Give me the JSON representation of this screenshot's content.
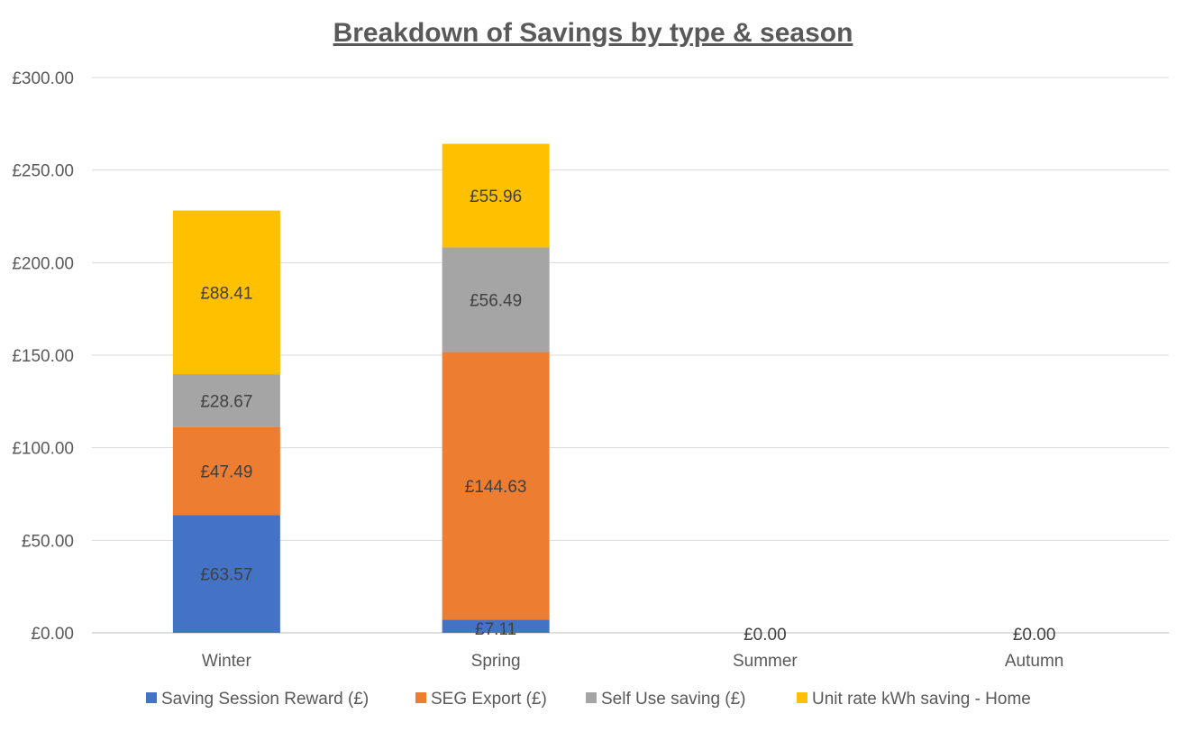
{
  "chart_data": {
    "type": "bar",
    "stacked": true,
    "title": "Breakdown of Savings by type & season",
    "xlabel": "",
    "ylabel": "",
    "categories": [
      "Winter",
      "Spring",
      "Summer",
      "Autumn"
    ],
    "ylim": [
      0,
      300
    ],
    "yticks": [
      0,
      50,
      100,
      150,
      200,
      250,
      300
    ],
    "yticklabels": [
      "£0.00",
      "£50.00",
      "£100.00",
      "£150.00",
      "£200.00",
      "£250.00",
      "£300.00"
    ],
    "grid": true,
    "legend": "bottom",
    "series": [
      {
        "name": "Saving Session Reward (£)",
        "color": "#4472C4",
        "values": [
          63.57,
          7.11,
          0,
          0
        ],
        "labels": [
          "£63.57",
          "£7.11",
          "£0.00",
          "£0.00"
        ]
      },
      {
        "name": "SEG Export (£)",
        "color": "#ED7D31",
        "values": [
          47.49,
          144.63,
          0,
          0
        ],
        "labels": [
          "£47.49",
          "£144.63",
          "",
          ""
        ]
      },
      {
        "name": "Self Use saving (£)",
        "color": "#A5A5A5",
        "values": [
          28.67,
          56.49,
          0,
          0
        ],
        "labels": [
          "£28.67",
          "£56.49",
          "",
          ""
        ]
      },
      {
        "name": "Unit rate kWh saving - Home",
        "color": "#FFC000",
        "values": [
          88.41,
          55.96,
          0,
          0
        ],
        "labels": [
          "£88.41",
          "£55.96",
          "",
          ""
        ]
      }
    ]
  }
}
